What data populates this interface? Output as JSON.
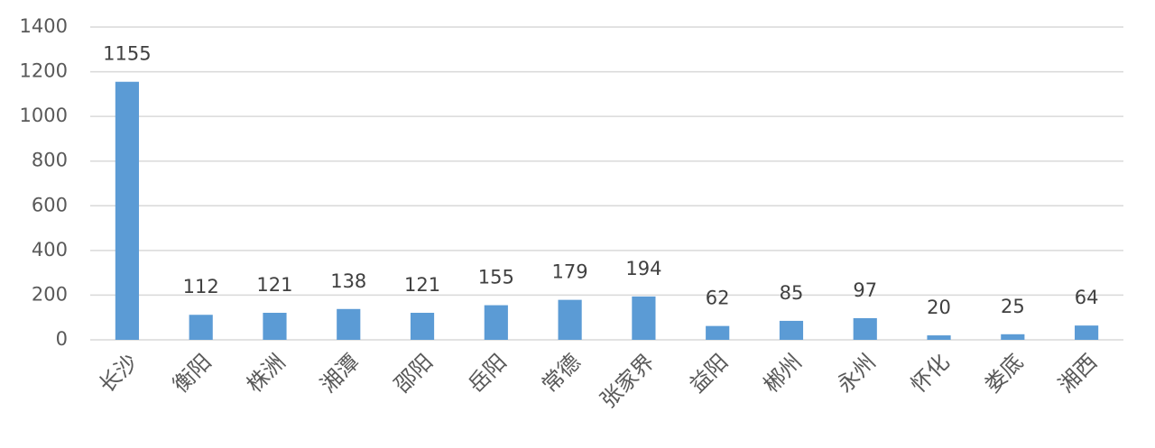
{
  "chart_data": {
    "type": "bar",
    "categories": [
      "长沙",
      "衡阳",
      "株洲",
      "湘潭",
      "邵阳",
      "岳阳",
      "常德",
      "张家界",
      "益阳",
      "郴州",
      "永州",
      "怀化",
      "娄底",
      "湘西"
    ],
    "values": [
      1155,
      112,
      121,
      138,
      121,
      155,
      179,
      194,
      62,
      85,
      97,
      20,
      25,
      64
    ],
    "color": "#5b9bd5",
    "ylim": [
      0,
      1400
    ],
    "yticks": [
      0,
      200,
      400,
      600,
      800,
      1000,
      1200,
      1400
    ],
    "grid": true
  }
}
